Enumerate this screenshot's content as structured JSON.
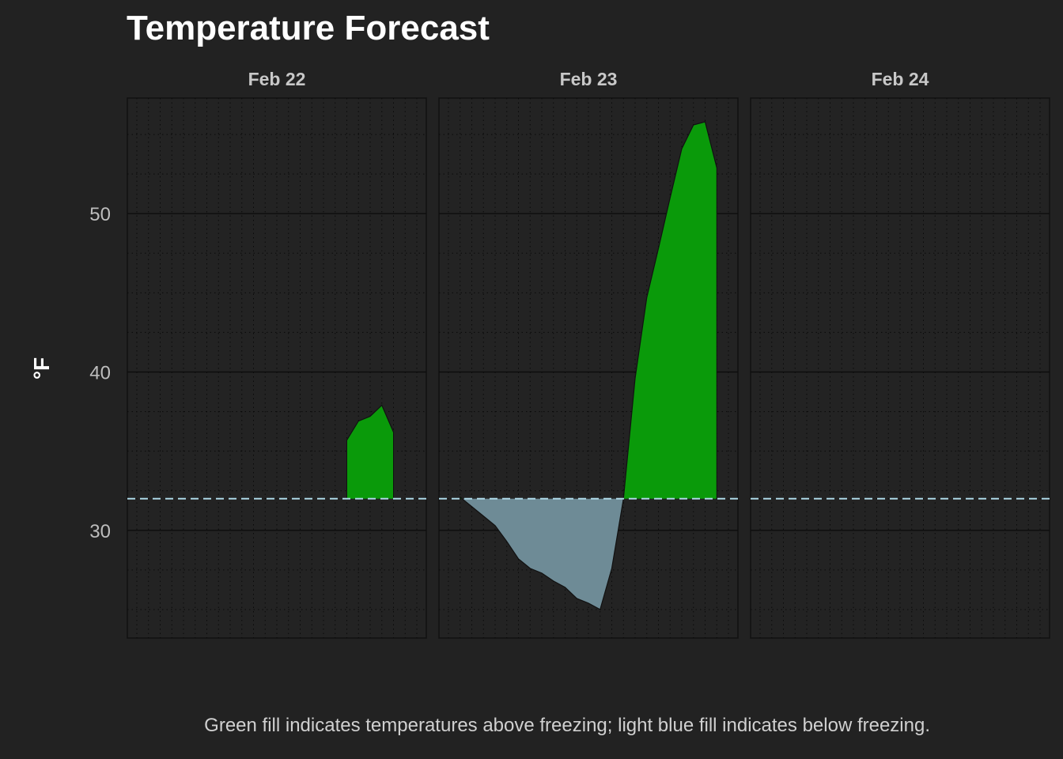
{
  "chart_data": {
    "type": "area",
    "title": "Temperature Forecast",
    "ylabel": "°F",
    "caption": "Green fill indicates temperatures above freezing; light blue fill indicates below freezing.",
    "ylim": [
      23.2,
      57.3
    ],
    "yticks": [
      30,
      40,
      50
    ],
    "freezing_line": 32,
    "x_unit": "hour of day",
    "colors": {
      "background": "#222222",
      "panel_border": "#111111",
      "grid_major": "#0d0d0d",
      "grid_minor": "#0a0a0a",
      "above": "#0a9a0a",
      "below": "#6e8b96",
      "freezing_line": "#add8e6"
    },
    "legend": "none",
    "panels": [
      {
        "label": "Feb 22",
        "series": [
          {
            "x": 18,
            "y": 35.7
          },
          {
            "x": 19,
            "y": 36.9
          },
          {
            "x": 20,
            "y": 37.2
          },
          {
            "x": 21,
            "y": 37.9
          },
          {
            "x": 22,
            "y": 36.2
          }
        ]
      },
      {
        "label": "Feb 23",
        "series": [
          {
            "x": 1,
            "y": 32.1
          },
          {
            "x": 2,
            "y": 31.5
          },
          {
            "x": 3,
            "y": 30.9
          },
          {
            "x": 4,
            "y": 30.3
          },
          {
            "x": 5,
            "y": 29.3
          },
          {
            "x": 6,
            "y": 28.2
          },
          {
            "x": 7,
            "y": 27.6
          },
          {
            "x": 8,
            "y": 27.3
          },
          {
            "x": 9,
            "y": 26.8
          },
          {
            "x": 10,
            "y": 26.4
          },
          {
            "x": 11,
            "y": 25.7
          },
          {
            "x": 12,
            "y": 25.4
          },
          {
            "x": 13,
            "y": 25.0
          },
          {
            "x": 14,
            "y": 27.6
          },
          {
            "x": 15,
            "y": 32.0
          },
          {
            "x": 16,
            "y": 39.6
          },
          {
            "x": 17,
            "y": 44.7
          },
          {
            "x": 18,
            "y": 47.8
          },
          {
            "x": 19,
            "y": 51.0
          },
          {
            "x": 20,
            "y": 54.1
          },
          {
            "x": 21,
            "y": 55.6
          },
          {
            "x": 22,
            "y": 55.8
          },
          {
            "x": 23,
            "y": 52.9
          }
        ]
      },
      {
        "label": "Feb 24",
        "series": []
      }
    ]
  }
}
